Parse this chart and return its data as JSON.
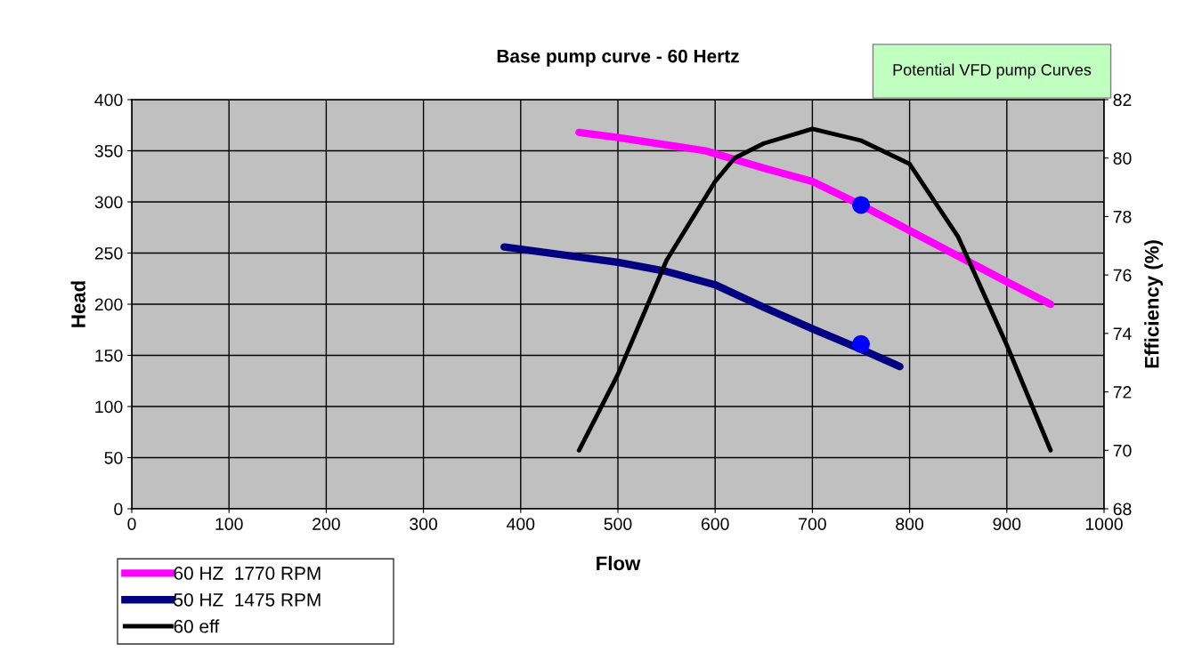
{
  "chart_data": {
    "type": "line",
    "title": "Base pump curve - 60 Hertz",
    "xlabel": "Flow",
    "ylabel": "Head",
    "y2label": "Efficiency (%)",
    "annotations": [
      "Potential VFD pump Curves"
    ],
    "xlim": [
      0,
      1000
    ],
    "xticks": [
      0,
      100,
      200,
      300,
      400,
      500,
      600,
      700,
      800,
      900,
      1000
    ],
    "ylim": [
      0,
      400
    ],
    "yticks": [
      0,
      50,
      100,
      150,
      200,
      250,
      300,
      350,
      400
    ],
    "y2lim": [
      68,
      82
    ],
    "y2ticks": [
      68,
      70,
      72,
      74,
      76,
      78,
      80,
      82
    ],
    "grid": true,
    "legend": "bottom left",
    "series": [
      {
        "name": "60 HZ  1770 RPM",
        "color": "#ff00ff",
        "x": [
          460,
          500,
          590,
          650,
          700,
          750,
          800,
          900,
          945
        ],
        "values": [
          368,
          363,
          350,
          333,
          320,
          297,
          272,
          222,
          200
        ]
      },
      {
        "name": "50 HZ  1475 RPM",
        "color": "#000080",
        "x": [
          383,
          500,
          550,
          600,
          650,
          700,
          750,
          790
        ],
        "values": [
          256,
          241,
          232,
          219,
          197,
          176,
          156,
          139
        ]
      },
      {
        "name": "60 eff",
        "color": "#000000",
        "axis": "y2",
        "x": [
          460,
          500,
          550,
          600,
          620,
          650,
          700,
          750,
          800,
          850,
          900,
          945
        ],
        "values": [
          70,
          72.6,
          76.5,
          79.2,
          80,
          80.5,
          81,
          80.6,
          79.8,
          77.3,
          73.6,
          70
        ]
      },
      {
        "type": "scatter",
        "color": "#0000ff",
        "x": [
          750,
          750
        ],
        "values": [
          297,
          161
        ]
      }
    ]
  }
}
